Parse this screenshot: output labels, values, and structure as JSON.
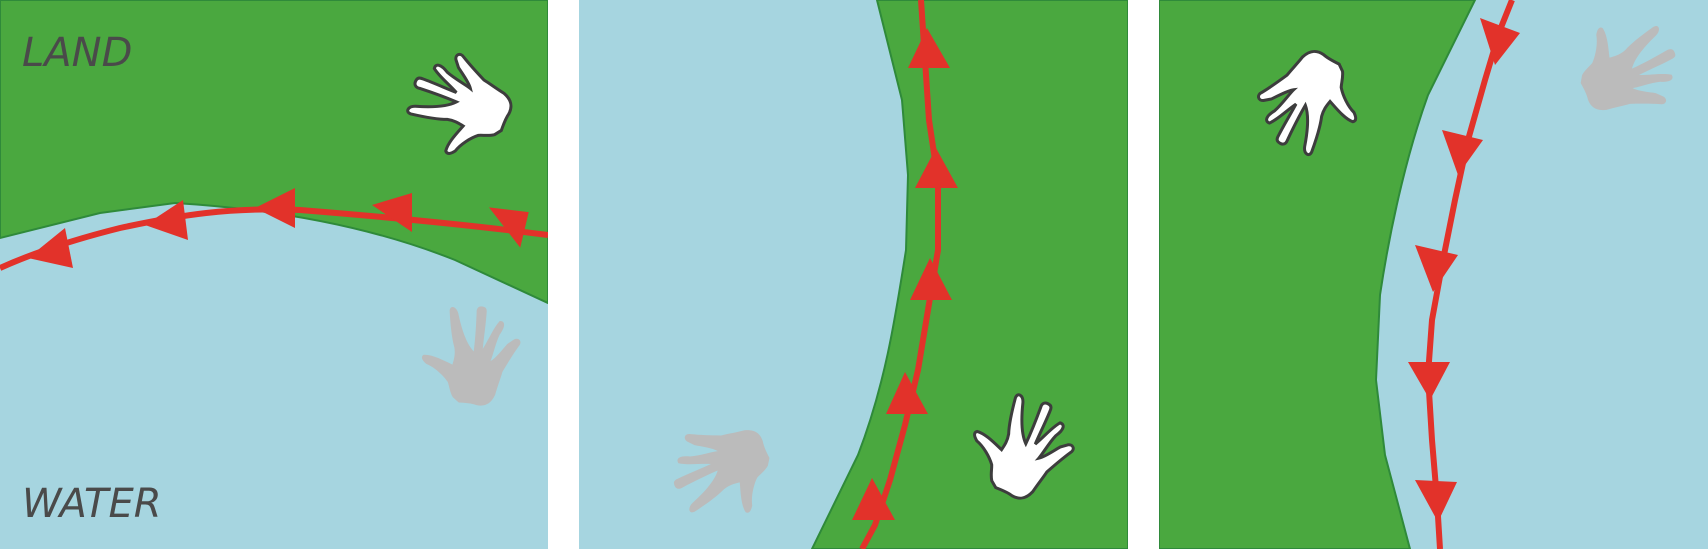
{
  "labels": {
    "land": "LAND",
    "water": "WATER"
  },
  "colors": {
    "land": "#4aa83f",
    "water": "#a6d5e0",
    "path": "#e2322a",
    "hand_on": "#ffffff",
    "hand_outline": "#3d3d3d",
    "hand_off": "#bbbbbb",
    "gutter": "#ffffff"
  },
  "icons": [
    "hand-icon"
  ]
}
